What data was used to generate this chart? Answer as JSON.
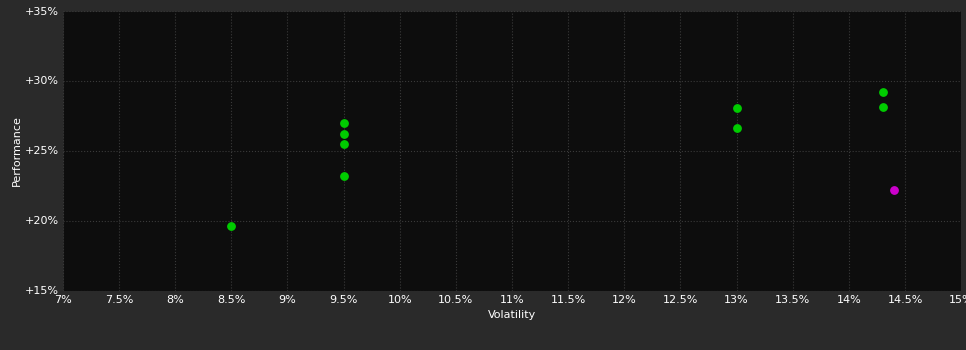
{
  "background_color": "#2a2a2a",
  "plot_bg_color": "#0d0d0d",
  "grid_color": "#3a3a3a",
  "text_color": "#ffffff",
  "xlabel": "Volatility",
  "ylabel": "Performance",
  "xlim": [
    0.07,
    0.15
  ],
  "ylim": [
    0.15,
    0.35
  ],
  "xticks": [
    0.07,
    0.075,
    0.08,
    0.085,
    0.09,
    0.095,
    0.1,
    0.105,
    0.11,
    0.115,
    0.12,
    0.125,
    0.13,
    0.135,
    0.14,
    0.145,
    0.15
  ],
  "xtick_labels": [
    "7%",
    "7.5%",
    "8%",
    "8.5%",
    "9%",
    "9.5%",
    "10%",
    "10.5%",
    "11%",
    "11.5%",
    "12%",
    "12.5%",
    "13%",
    "13.5%",
    "14%",
    "14.5%",
    "15%"
  ],
  "yticks": [
    0.15,
    0.2,
    0.25,
    0.3,
    0.35
  ],
  "ytick_labels": [
    "+15%",
    "+20%",
    "+25%",
    "+30%",
    "+35%"
  ],
  "green_points": [
    [
      0.095,
      0.27
    ],
    [
      0.095,
      0.262
    ],
    [
      0.095,
      0.255
    ],
    [
      0.095,
      0.232
    ],
    [
      0.085,
      0.196
    ],
    [
      0.13,
      0.28
    ],
    [
      0.13,
      0.266
    ],
    [
      0.143,
      0.292
    ],
    [
      0.143,
      0.281
    ]
  ],
  "magenta_points": [
    [
      0.144,
      0.222
    ]
  ],
  "green_color": "#00cc00",
  "magenta_color": "#cc00cc",
  "dot_size": 28,
  "grid_linestyle": ":",
  "grid_linewidth": 0.8,
  "axis_fontsize": 8,
  "tick_fontsize": 8
}
